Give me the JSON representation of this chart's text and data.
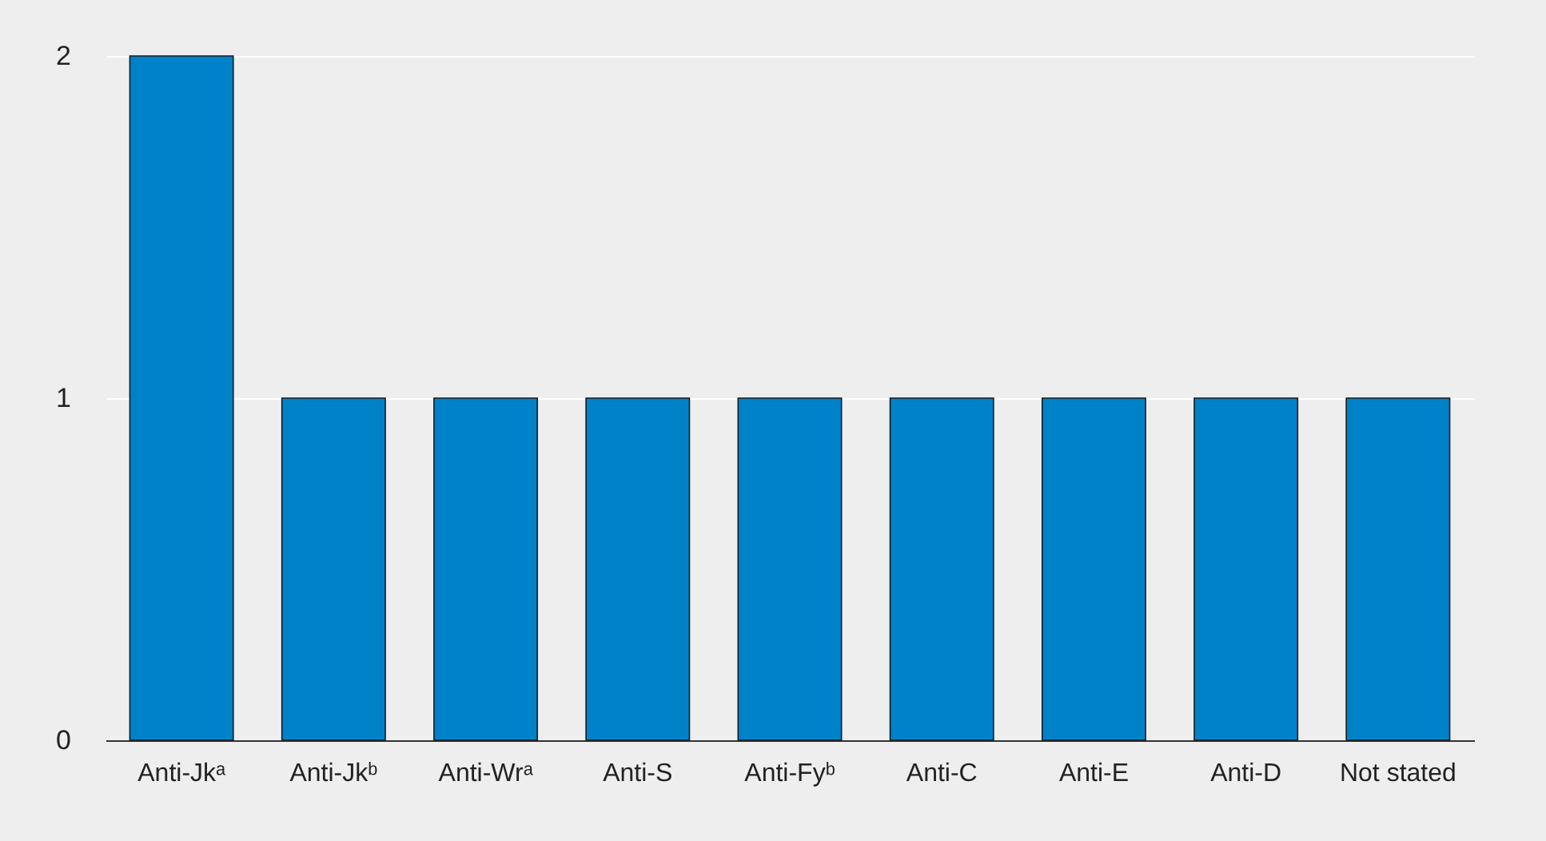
{
  "chart_data": {
    "type": "bar",
    "categories": [
      "Anti-Jkᵃ",
      "Anti-Jkᵇ",
      "Anti-Wrᵃ",
      "Anti-S",
      "Anti-Fyᵇ",
      "Anti-C",
      "Anti-E",
      "Anti-D",
      "Not stated"
    ],
    "values": [
      2,
      1,
      1,
      1,
      1,
      1,
      1,
      1,
      1
    ],
    "color": "#0082c8",
    "ylim": [
      0,
      2
    ],
    "yticks": [
      0,
      1,
      2
    ],
    "grid": "y"
  }
}
